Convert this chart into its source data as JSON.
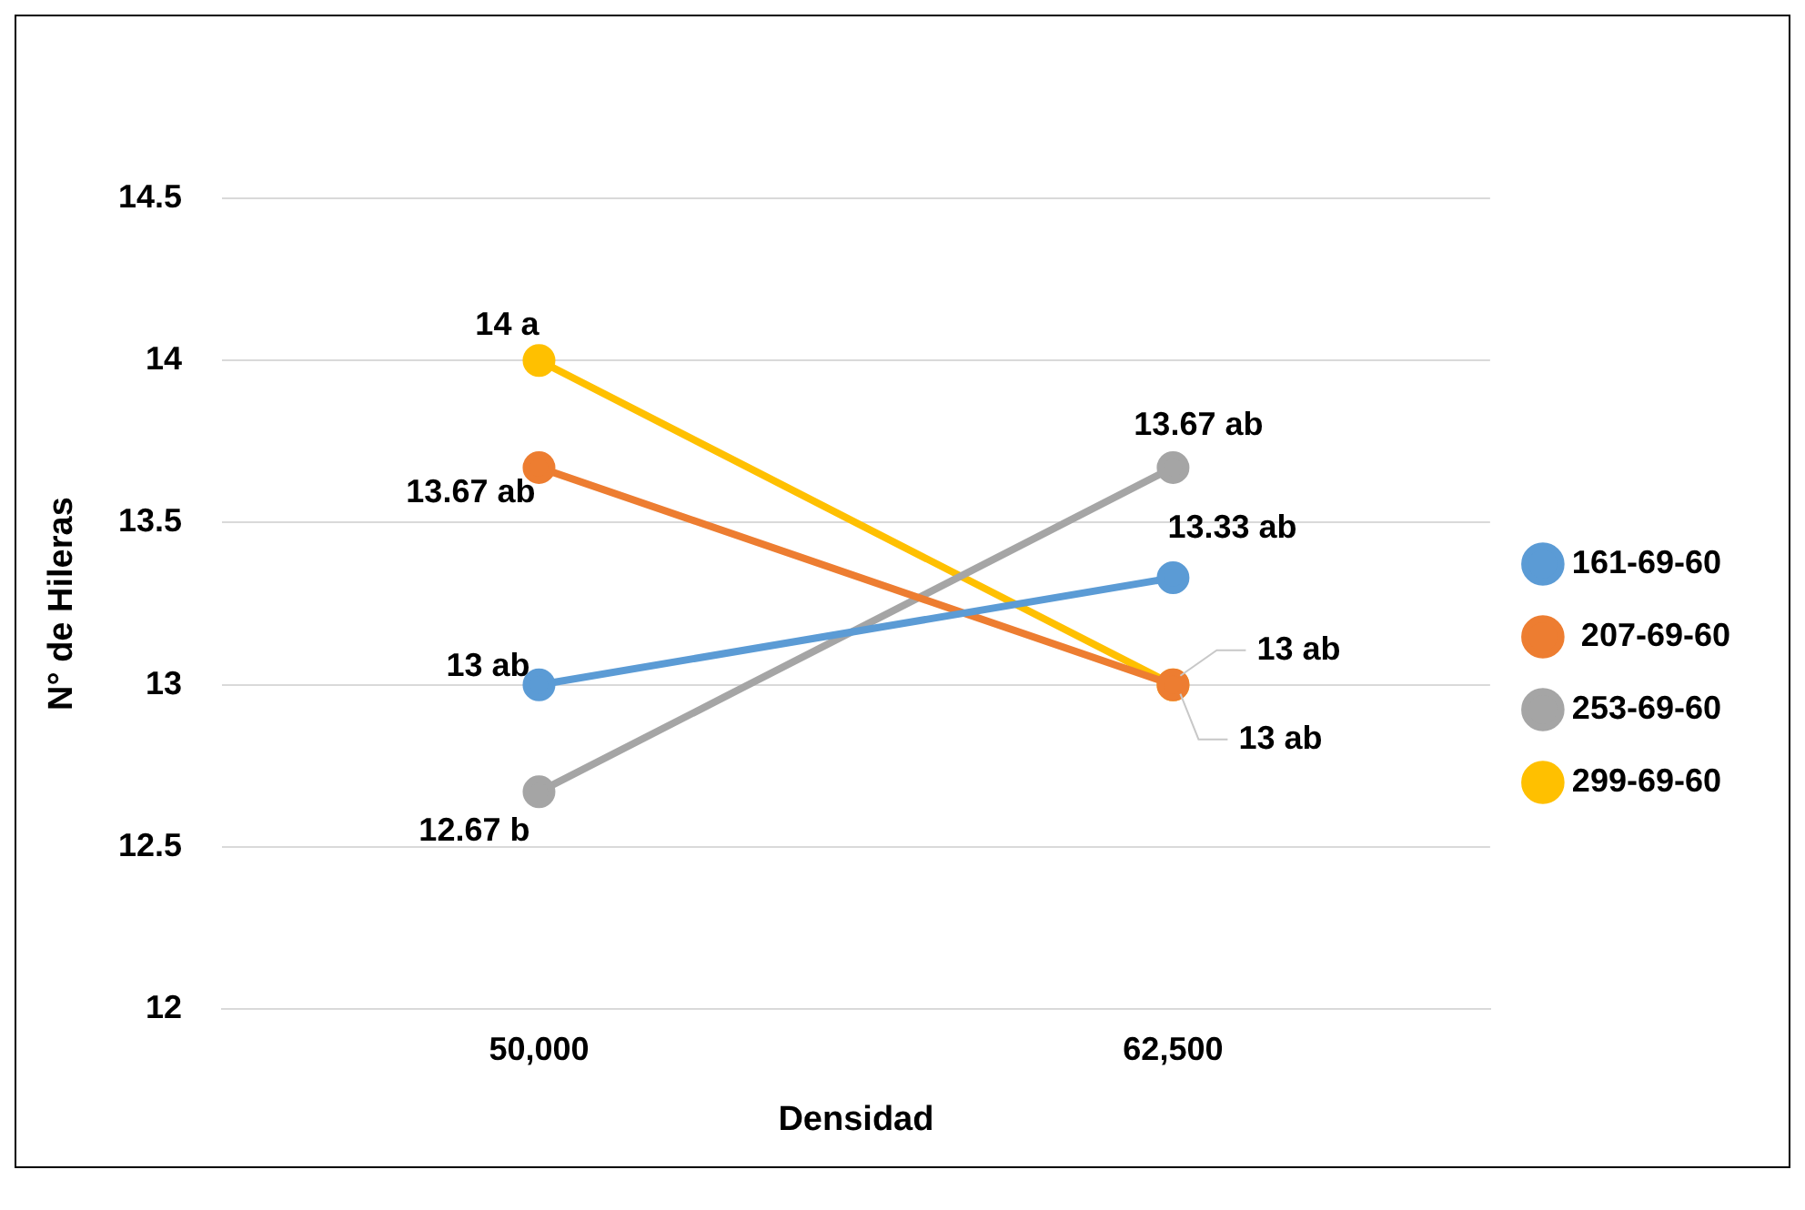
{
  "chart_data": {
    "type": "line",
    "xlabel": "Densidad",
    "ylabel": "N° de Hileras",
    "categories": [
      "50,000",
      "62,500"
    ],
    "series": [
      {
        "name": "161-69-60",
        "color": "#5b9bd5",
        "values": [
          13,
          13.33
        ],
        "value_labels": [
          "13 ab",
          "13.33 ab"
        ]
      },
      {
        "name": " 207-69-60",
        "color": "#ed7d31",
        "values": [
          13.67,
          13
        ],
        "value_labels": [
          "13.67 ab",
          "13 ab"
        ]
      },
      {
        "name": "253-69-60",
        "color": "#a5a5a5",
        "values": [
          12.67,
          13.67
        ],
        "value_labels": [
          "12.67 b",
          "13.67 ab"
        ]
      },
      {
        "name": "299-69-60",
        "color": "#ffc000",
        "values": [
          14,
          13
        ],
        "value_labels": [
          "14 a",
          "13 ab"
        ]
      }
    ],
    "ylim": [
      12,
      14.5
    ],
    "yticks": [
      12,
      12.5,
      13,
      13.5,
      14,
      14.5
    ],
    "grid": "y",
    "legend": "right",
    "marker": "circle",
    "line_style": "solid"
  }
}
